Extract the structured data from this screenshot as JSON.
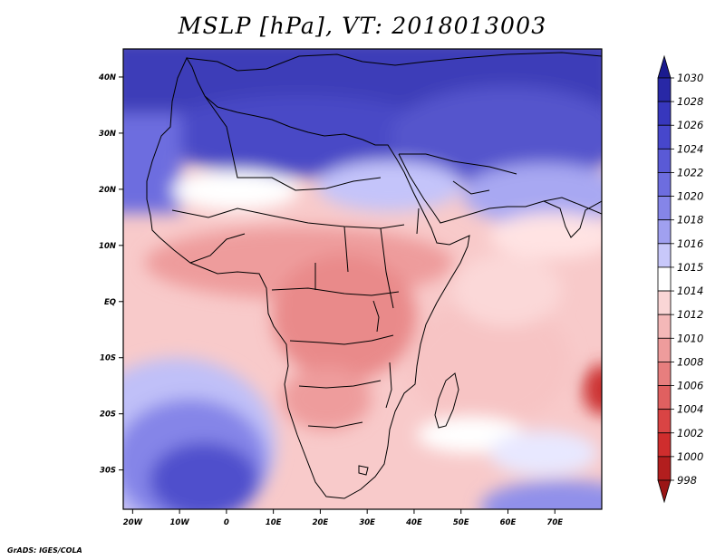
{
  "title": "MSLP [hPa], VT: 2018013003",
  "credit": "GrADS: IGES/COLA",
  "map": {
    "variable": "MSLP",
    "units": "hPa",
    "valid_time": "2018013003",
    "lat_ticks": [
      "40N",
      "30N",
      "20N",
      "10N",
      "EQ",
      "10S",
      "20S",
      "30S"
    ],
    "lon_ticks": [
      "20W",
      "10W",
      "0",
      "10E",
      "20E",
      "30E",
      "40E",
      "50E",
      "60E",
      "70E"
    ],
    "lat_range": [
      -37,
      45
    ],
    "lon_range": [
      -22,
      80
    ]
  },
  "colorbar": {
    "labels": [
      "1030",
      "1028",
      "1026",
      "1024",
      "1022",
      "1020",
      "1018",
      "1016",
      "1015",
      "1014",
      "1012",
      "1010",
      "1008",
      "1006",
      "1004",
      "1002",
      "1000",
      "998"
    ],
    "colors": [
      "#1a1a8f",
      "#2828a6",
      "#3737bd",
      "#4747cc",
      "#5a5ad6",
      "#6d6ddf",
      "#8585e8",
      "#a0a0f0",
      "#c8c8fa",
      "#ffffff",
      "#fad6d6",
      "#f4b8b8",
      "#ee9c9c",
      "#e77e7e",
      "#e06060",
      "#d94444",
      "#cf2d2d",
      "#b21e1e",
      "#9b1515"
    ]
  }
}
